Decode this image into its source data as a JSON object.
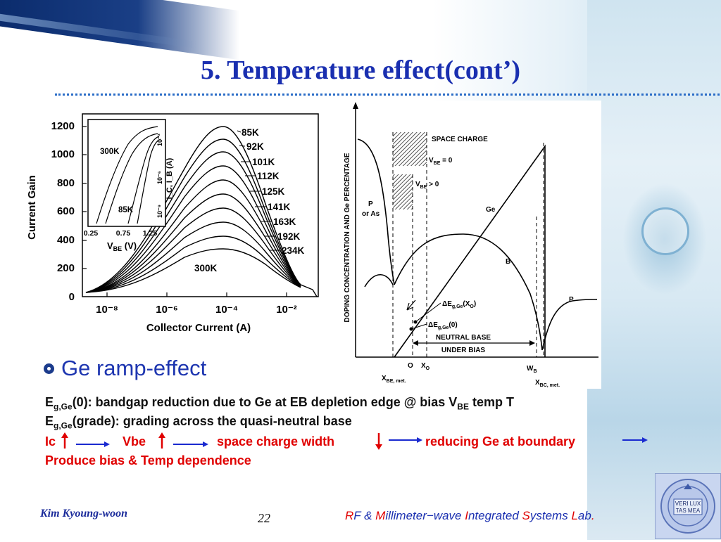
{
  "slide": {
    "title": "5. Temperature effect(cont’)",
    "bullet": "Ge ramp-effect",
    "footer": {
      "author": "Kim Kyoung-woon",
      "page": "22",
      "lab_parts": [
        "R",
        "F & ",
        "M",
        "illimeter−wave ",
        "I",
        "ntegrated ",
        "S",
        "ystems ",
        "L",
        "ab",
        "."
      ]
    }
  },
  "body": {
    "line1": {
      "e": "E",
      "sub": "g,Ge",
      "text": "(0): bandgap reduction due to Ge at EB depletion edge @ bias V",
      "sub2": "BE",
      "tail": " temp T"
    },
    "line2": {
      "e": "E",
      "sub": "g,Ge",
      "text": "(grade): grading across the quasi-neutral base"
    },
    "line3": {
      "ic": "Ic",
      "vbe": "Vbe",
      "scw": "space charge width",
      "rg": "reducing Ge at boundary"
    },
    "line4": "Produce bias & Temp dependence"
  },
  "left_figure": {
    "ylabel": "Current Gain",
    "xlabel": "Collector Current (A)",
    "yticks": [
      "1200",
      "1000",
      "800",
      "600",
      "400",
      "200",
      "0"
    ],
    "xticks": [
      "10⁻⁸",
      "10⁻⁶",
      "10⁻⁴",
      "10⁻²"
    ],
    "curve_labels": [
      "85K",
      "92K",
      "101K",
      "112K",
      "125K",
      "141K",
      "163K",
      "192K",
      "234K",
      "300K"
    ],
    "inset": {
      "labels": [
        "300K",
        "85K"
      ],
      "xticks": [
        "0.25",
        "0.75",
        "1.25"
      ],
      "xlabel": "V",
      "xlabel_sub": "BE",
      "xlabel_unit": " (V)",
      "ylabel": "I_C, I_B (A)",
      "yticks": [
        "10⁻³",
        "10⁻⁶",
        "10⁻⁹"
      ]
    }
  },
  "right_figure": {
    "ylabel": "DOPING CONCENTRATION AND Ge PERCENTAGE",
    "labels": {
      "space_charge": "SPACE CHARGE",
      "vbe0": "V",
      "vbe0_sub": "BE",
      "vbe0_tail": " = 0",
      "vbegt": "V",
      "vbegt_sub": "BE",
      "vbegt_tail": " > 0",
      "p_as": "P",
      "p_as2": "or As",
      "ge": "Ge",
      "b": "B",
      "p": "P",
      "deg_x0": "ΔE",
      "deg_x0_sub": "g,Ge",
      "deg_x0_tail": "(X",
      "deg_x0_sub2": "O",
      "deg_x0_tail2": ")",
      "deg0": "ΔE",
      "deg0_sub": "g,Ge",
      "deg0_tail": "(0)",
      "neutral1": "NEUTRAL  BASE",
      "neutral2": "UNDER BIAS",
      "xbe": "X",
      "xbe_sub": "BE, met.",
      "o": "O",
      "xo": "X",
      "xo_sub": "O",
      "wb": "W",
      "wb_sub": "B",
      "xbc": "X",
      "xbc_sub": "BC, met."
    }
  },
  "logo": {
    "text1": "VERI LUX",
    "text2": "TAS MEA"
  },
  "colors": {
    "title": "#1a2fb0",
    "red": "#e00000",
    "arrow_blue": "#1a2ad0",
    "navy": "#0a2a6a"
  }
}
